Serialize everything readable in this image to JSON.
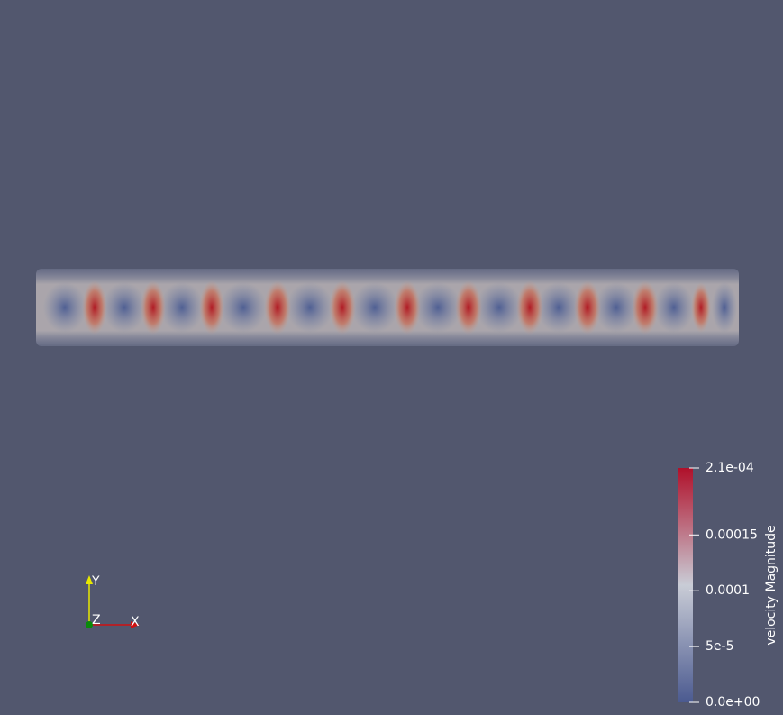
{
  "colorbar": {
    "title": "velocity Magnitude",
    "range": [
      0,
      0.00021
    ],
    "ticks": [
      {
        "value": 0.00021,
        "label": "2.1e-04"
      },
      0.00015,
      0.0001,
      {
        "value": 5e-05,
        "label": "5e-5"
      },
      {
        "value": 0,
        "label": "0.0e+00"
      }
    ]
  },
  "axes": {
    "y": "Y",
    "z": "Z",
    "x": "X"
  }
}
